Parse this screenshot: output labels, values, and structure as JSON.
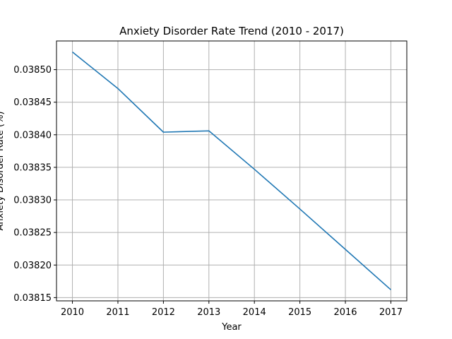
{
  "chart_data": {
    "type": "line",
    "title": "Anxiety Disorder Rate Trend (2010 - 2017)",
    "xlabel": "Year",
    "ylabel": "Anxiety Disorder Rate (%)",
    "x": [
      2010,
      2011,
      2012,
      2013,
      2014,
      2015,
      2016,
      2017
    ],
    "series": [
      {
        "values": [
          0.038527,
          0.038471,
          0.038404,
          0.038406,
          0.038347,
          0.038286,
          0.038224,
          0.038162
        ],
        "color": "#1f77b4"
      }
    ],
    "xlim": [
      2009.65,
      2017.35
    ],
    "ylim": [
      0.038145,
      0.038544
    ],
    "xticks": [
      "2010",
      "2011",
      "2012",
      "2013",
      "2014",
      "2015",
      "2016",
      "2017"
    ],
    "yticks": [
      0.03815,
      0.0382,
      0.03825,
      0.0383,
      0.03835,
      0.0384,
      0.03845,
      0.0385
    ],
    "ytick_labels": [
      "0.03815",
      "0.03820",
      "0.03825",
      "0.03830",
      "0.03835",
      "0.03840",
      "0.03845",
      "0.03850"
    ],
    "grid": true,
    "legend": false
  }
}
